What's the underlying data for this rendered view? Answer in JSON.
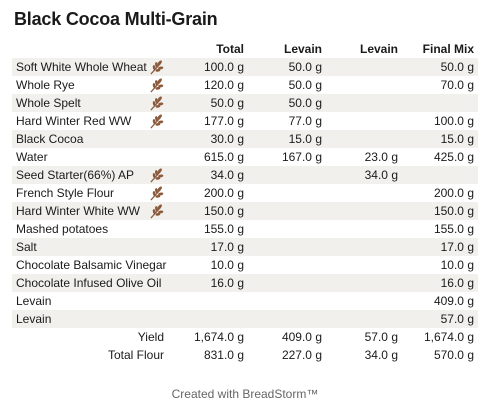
{
  "title": "Black Cocoa Multi-Grain",
  "columns": [
    "",
    "Total",
    "Levain",
    "Levain",
    "Final Mix"
  ],
  "rows": [
    {
      "name": "Soft White Whole Wheat",
      "icon": "wheat-icon",
      "total": "100.0 g",
      "levain1": "50.0 g",
      "levain2": "",
      "final": "50.0 g"
    },
    {
      "name": "Whole Rye",
      "icon": "wheat-icon",
      "total": "120.0 g",
      "levain1": "50.0 g",
      "levain2": "",
      "final": "70.0 g"
    },
    {
      "name": "Whole Spelt",
      "icon": "wheat-icon",
      "total": "50.0 g",
      "levain1": "50.0 g",
      "levain2": "",
      "final": ""
    },
    {
      "name": "Hard Winter Red WW",
      "icon": "wheat-icon",
      "total": "177.0 g",
      "levain1": "77.0 g",
      "levain2": "",
      "final": "100.0 g"
    },
    {
      "name": "Black Cocoa",
      "icon": "",
      "total": "30.0 g",
      "levain1": "15.0 g",
      "levain2": "",
      "final": "15.0 g"
    },
    {
      "name": "Water",
      "icon": "",
      "total": "615.0 g",
      "levain1": "167.0 g",
      "levain2": "23.0 g",
      "final": "425.0 g"
    },
    {
      "name": "Seed Starter(66%) AP",
      "icon": "wheat-icon",
      "total": "34.0 g",
      "levain1": "",
      "levain2": "34.0 g",
      "final": ""
    },
    {
      "name": "French Style Flour",
      "icon": "wheat-icon",
      "total": "200.0 g",
      "levain1": "",
      "levain2": "",
      "final": "200.0 g"
    },
    {
      "name": "Hard Winter White WW",
      "icon": "wheat-icon",
      "total": "150.0 g",
      "levain1": "",
      "levain2": "",
      "final": "150.0 g"
    },
    {
      "name": "Mashed potatoes",
      "icon": "",
      "total": "155.0 g",
      "levain1": "",
      "levain2": "",
      "final": "155.0 g"
    },
    {
      "name": "Salt",
      "icon": "",
      "total": "17.0 g",
      "levain1": "",
      "levain2": "",
      "final": "17.0 g"
    },
    {
      "name": "Chocolate Balsamic Vinegar",
      "icon": "",
      "total": "10.0 g",
      "levain1": "",
      "levain2": "",
      "final": "10.0 g"
    },
    {
      "name": "Chocolate Infused Olive Oil",
      "icon": "",
      "total": "16.0 g",
      "levain1": "",
      "levain2": "",
      "final": "16.0 g"
    },
    {
      "name": "Levain",
      "icon": "",
      "total": "",
      "levain1": "",
      "levain2": "",
      "final": "409.0 g"
    },
    {
      "name": "Levain",
      "icon": "",
      "total": "",
      "levain1": "",
      "levain2": "",
      "final": "57.0 g"
    }
  ],
  "footer": [
    {
      "label": "Yield",
      "total": "1,674.0 g",
      "levain1": "409.0 g",
      "levain2": "57.0 g",
      "final": "1,674.0 g"
    },
    {
      "label": "Total Flour",
      "total": "831.0 g",
      "levain1": "227.0 g",
      "levain2": "34.0 g",
      "final": "570.0 g"
    }
  ],
  "credit": "Created with BreadStorm™",
  "colors": {
    "shade": "#f2f0ec",
    "wheat": "#8b5a3c"
  }
}
